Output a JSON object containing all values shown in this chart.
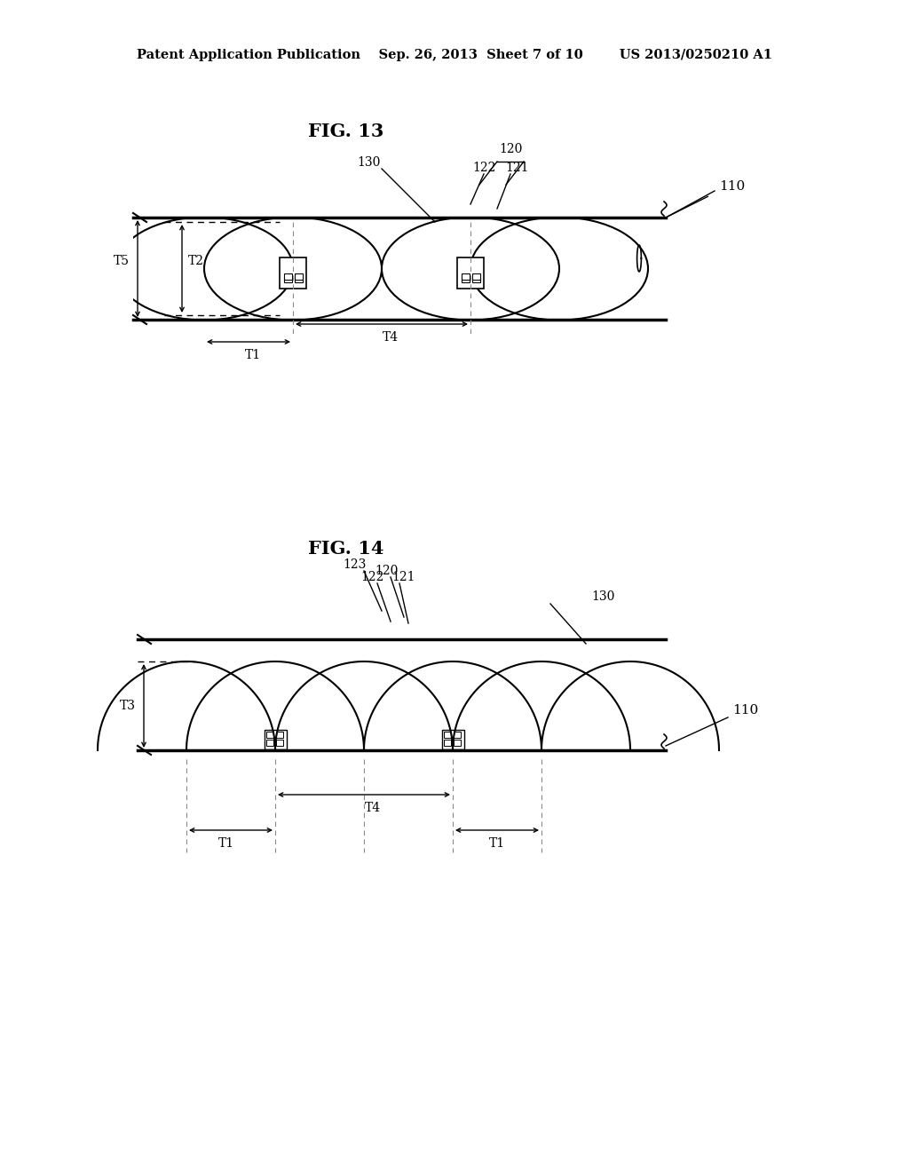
{
  "bg_color": "#ffffff",
  "line_color": "#000000",
  "header_text": "Patent Application Publication    Sep. 26, 2013  Sheet 7 of 10        US 2013/0250210 A1",
  "fig13_title": "FIG. 13",
  "fig14_title": "FIG. 14",
  "labels": {
    "110": "110",
    "120": "120",
    "121": "121",
    "122": "122",
    "123": "123",
    "130": "130",
    "T1": "T1",
    "T2": "T2",
    "T3": "T3",
    "T4": "T4",
    "T5": "T5"
  }
}
